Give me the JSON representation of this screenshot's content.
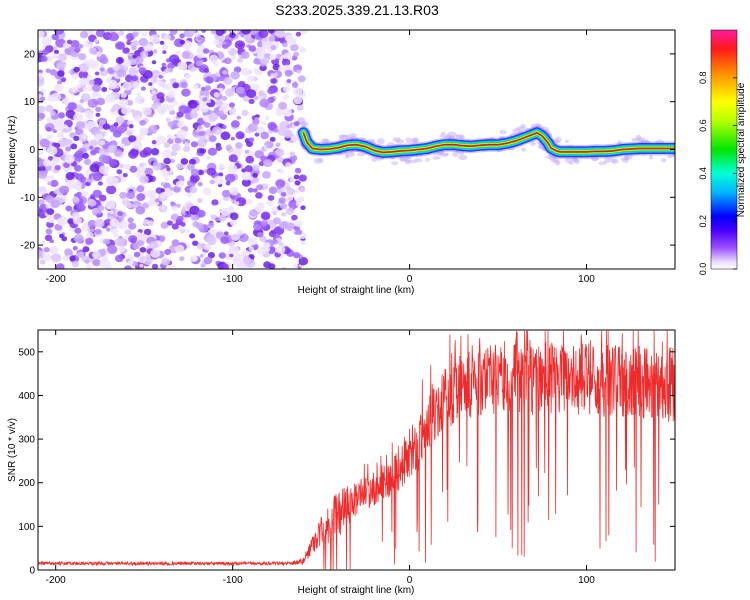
{
  "title": "S233.2025.339.21.13.R03",
  "colors": {
    "snr_line": "#ee2a2a",
    "track_core": "#e8452b",
    "frame": "#000000"
  },
  "chart_data": [
    {
      "type": "heatmap",
      "name": "spectrogram",
      "xlabel": "Height of straight line (km)",
      "ylabel": "Frequency (Hz)",
      "xlim": [
        -210,
        150
      ],
      "ylim": [
        -25,
        25
      ],
      "x_ticks": [
        -200,
        -100,
        0,
        100
      ],
      "x_tick_labels": [
        "-200",
        "-100",
        "0",
        "100"
      ],
      "y_ticks": [
        -20,
        -10,
        0,
        10,
        20
      ],
      "y_tick_labels": [
        "-20",
        "-10",
        "0",
        "10",
        "20"
      ],
      "noise_region_x": [
        -210,
        -60
      ],
      "noise_amplitude_range": [
        0.0,
        0.3
      ],
      "track": {
        "description_values": "frequency peak vs height",
        "x": [
          -60,
          -58,
          -55,
          -50,
          -45,
          -40,
          -35,
          -30,
          -25,
          -20,
          -15,
          -10,
          -5,
          0,
          5,
          10,
          15,
          20,
          25,
          30,
          35,
          40,
          45,
          50,
          55,
          60,
          65,
          70,
          72,
          75,
          78,
          80,
          83,
          85,
          90,
          95,
          100,
          105,
          110,
          115,
          120,
          125,
          130,
          135,
          140,
          145,
          150
        ],
        "y": [
          3.5,
          1.5,
          0.2,
          0.0,
          0.1,
          0.4,
          0.9,
          1.0,
          0.6,
          -0.2,
          -0.6,
          -0.5,
          -0.3,
          -0.2,
          0.0,
          0.2,
          0.7,
          1.0,
          1.0,
          0.8,
          0.7,
          0.9,
          1.0,
          1.0,
          1.3,
          1.8,
          2.5,
          3.2,
          3.5,
          2.8,
          1.5,
          0.3,
          -0.3,
          -0.5,
          -0.5,
          -0.5,
          -0.5,
          -0.4,
          -0.4,
          -0.3,
          0.0,
          0.1,
          0.2,
          0.2,
          0.2,
          0.2,
          0.2
        ]
      }
    },
    {
      "type": "line",
      "name": "snr",
      "xlabel": "Height of straight line (km)",
      "ylabel": "SNR (10 * v/v)",
      "xlim": [
        -210,
        150
      ],
      "ylim": [
        0,
        550
      ],
      "x_ticks": [
        -200,
        -100,
        0,
        100
      ],
      "x_tick_labels": [
        "-200",
        "-100",
        "0",
        "100"
      ],
      "y_ticks": [
        0,
        100,
        200,
        300,
        400,
        500
      ],
      "y_tick_labels": [
        "0",
        "100",
        "200",
        "300",
        "400",
        "500"
      ],
      "envelope": {
        "x": [
          -210,
          -70,
          -60,
          -55,
          -50,
          -45,
          -40,
          -35,
          -30,
          -25,
          -20,
          -15,
          -10,
          -5,
          0,
          5,
          10,
          15,
          20,
          25,
          30,
          40,
          50,
          60,
          70,
          80,
          90,
          100,
          110,
          120,
          130,
          140,
          150
        ],
        "mean": [
          15,
          15,
          20,
          60,
          90,
          110,
          130,
          150,
          165,
          175,
          185,
          200,
          215,
          240,
          265,
          290,
          330,
          360,
          390,
          410,
          420,
          430,
          440,
          445,
          440,
          440,
          435,
          440,
          435,
          430,
          430,
          425,
          425
        ],
        "spread": [
          7,
          7,
          15,
          40,
          70,
          90,
          100,
          90,
          70,
          70,
          70,
          80,
          80,
          100,
          110,
          120,
          120,
          120,
          130,
          140,
          140,
          140,
          150,
          160,
          160,
          160,
          150,
          160,
          160,
          160,
          160,
          160,
          160
        ]
      }
    }
  ],
  "colorbar": {
    "label": "Normalized spectral amplitude",
    "range": [
      0,
      1
    ],
    "ticks": [
      0.0,
      0.2,
      0.4,
      0.6,
      0.8
    ],
    "tick_labels": [
      "0.0",
      "0.2",
      "0.4",
      "0.6",
      "0.8"
    ]
  }
}
